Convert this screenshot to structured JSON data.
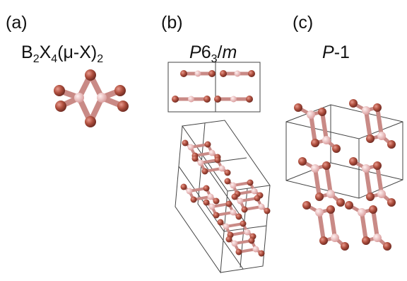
{
  "panels": [
    {
      "label": "(a)",
      "title_parts": [
        "B",
        "2",
        "X",
        "4",
        "(μ-X)",
        "2"
      ]
    },
    {
      "label": "(b)",
      "title_parts": [
        "P",
        "6",
        "3",
        "/",
        "m"
      ]
    },
    {
      "label": "(c)",
      "title_parts": [
        "P",
        "-1"
      ]
    }
  ]
}
